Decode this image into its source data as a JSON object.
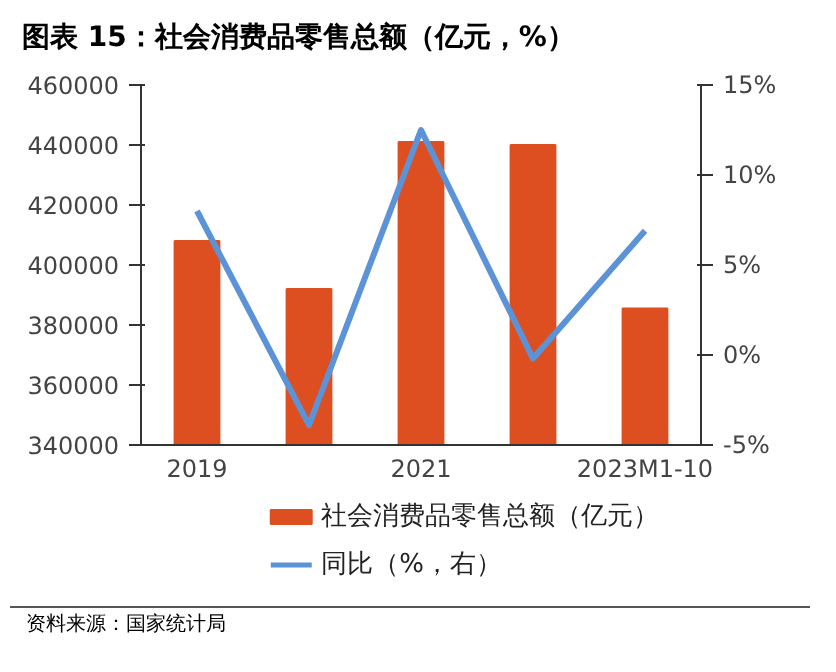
{
  "chart_data": {
    "type": "bar",
    "title": "图表 15：社会消费品零售总额（亿元，%）",
    "categories": [
      "2019",
      null,
      "2021",
      null,
      "2023M1-10"
    ],
    "series": [
      {
        "name": "社会消费品零售总额（亿元）",
        "color": "#dd4f21",
        "values": [
          408000,
          392000,
          441000,
          440000,
          385500
        ]
      },
      {
        "name": "同比（%，右）",
        "type": "line",
        "axis": "y2",
        "color": "#5b93d6",
        "values": [
          8.0,
          -3.9,
          12.5,
          -0.2,
          6.9
        ]
      }
    ],
    "ylim": [
      340000,
      460000
    ],
    "yticks": [
      340000,
      360000,
      380000,
      400000,
      420000,
      440000,
      460000
    ],
    "y2lim": [
      -5,
      15
    ],
    "y2ticks": [
      {
        "value": -5,
        "label": "-5%"
      },
      {
        "value": 0,
        "label": "0%"
      },
      {
        "value": 5,
        "label": "5%"
      },
      {
        "value": 10,
        "label": "10%"
      },
      {
        "value": 15,
        "label": "15%"
      }
    ],
    "grid": false,
    "legend": "bottom",
    "annotations": [
      "资料来源：国家统计局"
    ]
  }
}
